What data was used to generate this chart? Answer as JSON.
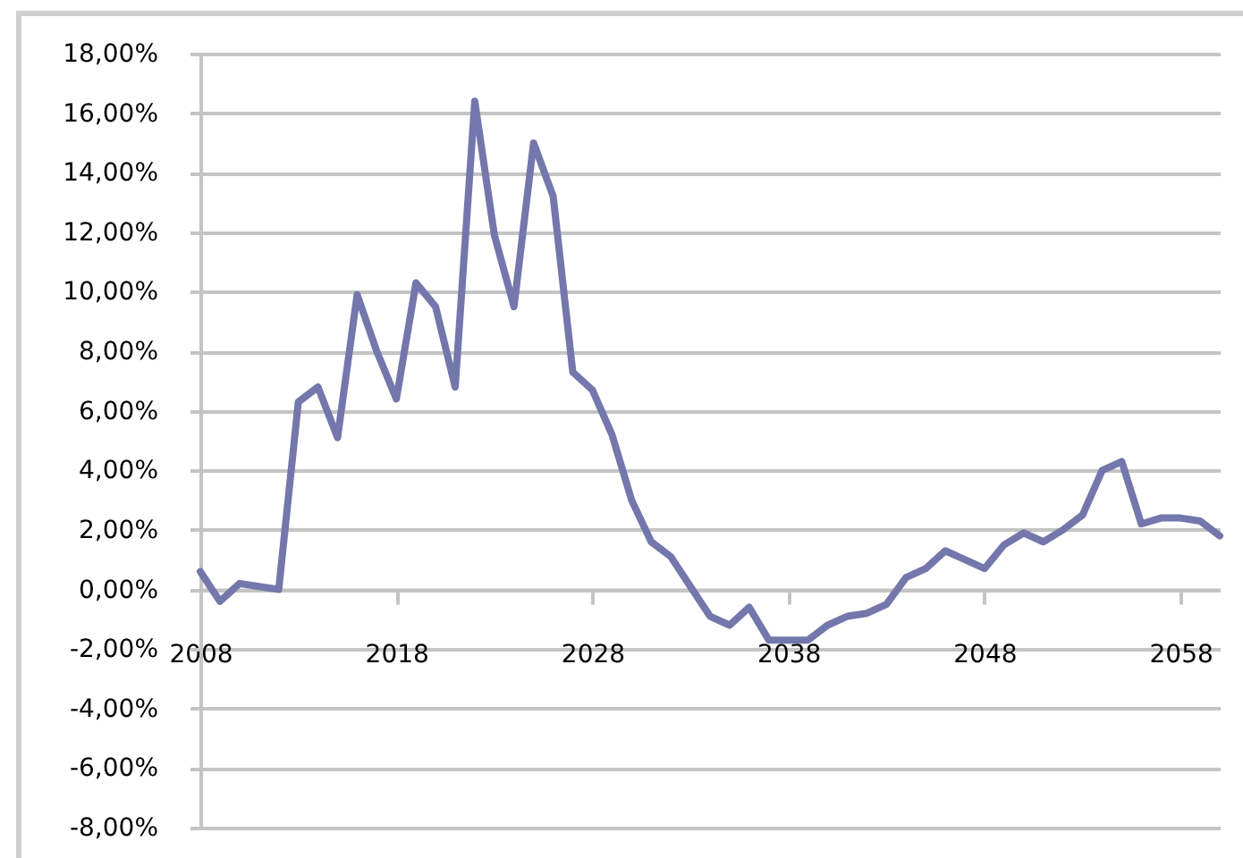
{
  "chart_data": {
    "type": "line",
    "x": [
      2008,
      2009,
      2010,
      2011,
      2012,
      2013,
      2014,
      2015,
      2016,
      2017,
      2018,
      2019,
      2020,
      2021,
      2022,
      2023,
      2024,
      2025,
      2026,
      2027,
      2028,
      2029,
      2030,
      2031,
      2032,
      2033,
      2034,
      2035,
      2036,
      2037,
      2038,
      2039,
      2040,
      2041,
      2042,
      2043,
      2044,
      2045,
      2046,
      2047,
      2048,
      2049,
      2050,
      2051,
      2052,
      2053,
      2054,
      2055,
      2056,
      2057,
      2058,
      2059,
      2060
    ],
    "values": [
      0.6,
      -0.4,
      0.2,
      0.1,
      0.0,
      6.3,
      6.8,
      5.1,
      9.9,
      8.0,
      6.4,
      10.3,
      9.5,
      6.8,
      16.4,
      11.9,
      9.5,
      15.0,
      13.2,
      7.3,
      6.7,
      5.2,
      3.0,
      1.6,
      1.1,
      0.1,
      -0.9,
      -1.2,
      -0.6,
      -1.7,
      -1.7,
      -1.7,
      -1.2,
      -0.9,
      -0.8,
      -0.5,
      0.4,
      0.7,
      1.3,
      1.0,
      0.7,
      1.5,
      1.9,
      1.6,
      2.0,
      2.5,
      4.0,
      4.3,
      2.2,
      2.4,
      2.4,
      2.3,
      1.8
    ],
    "color": "#7377ab",
    "xlim": [
      2008,
      2060
    ],
    "xticks": [
      2008,
      2018,
      2028,
      2038,
      2048,
      2058
    ],
    "ylim": [
      -8,
      18
    ],
    "yticks": [
      {
        "value": -8,
        "label": "-8,00%"
      },
      {
        "value": -6,
        "label": "-6,00%"
      },
      {
        "value": -4,
        "label": "-4,00%"
      },
      {
        "value": -2,
        "label": "-2,00%"
      },
      {
        "value": 0,
        "label": "0,00%"
      },
      {
        "value": 2,
        "label": "2,00%"
      },
      {
        "value": 4,
        "label": "4,00%"
      },
      {
        "value": 6,
        "label": "6,00%"
      },
      {
        "value": 8,
        "label": "8,00%"
      },
      {
        "value": 10,
        "label": "10,00%"
      },
      {
        "value": 12,
        "label": "12,00%"
      },
      {
        "value": 14,
        "label": "14,00%"
      },
      {
        "value": 16,
        "label": "16,00%"
      },
      {
        "value": 18,
        "label": "18,00%"
      }
    ],
    "grid": "y"
  }
}
